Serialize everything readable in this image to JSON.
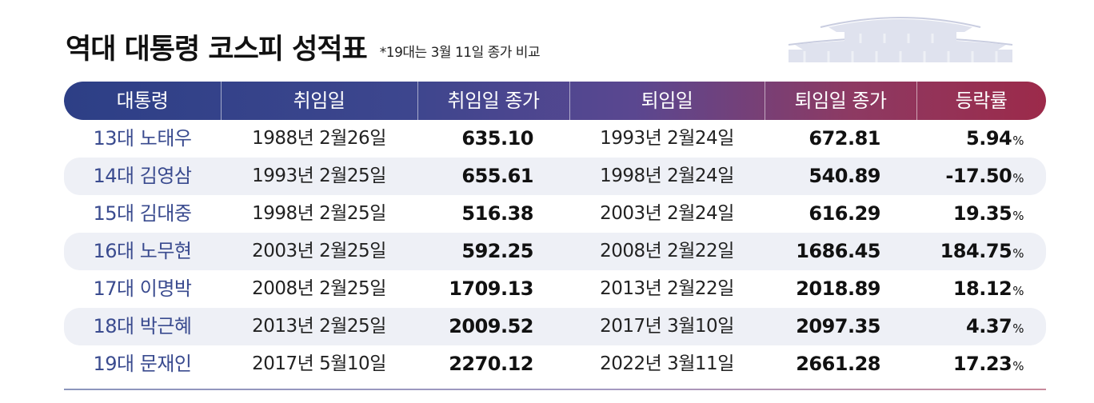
{
  "title": "역대 대통령 코스피 성적표",
  "note": "*19대는 3월 11일 종가 비교",
  "columns": [
    "대통령",
    "취임일",
    "취임일 종가",
    "퇴임일",
    "퇴임일 종가",
    "등락률"
  ],
  "percent_unit": "%",
  "rows": [
    {
      "president": "13대 노태우",
      "inaug_date": "1988년 2월26일",
      "inaug_close": "635.10",
      "leave_date": "1993년 2월24일",
      "leave_close": "672.81",
      "change": "5.94"
    },
    {
      "president": "14대 김영삼",
      "inaug_date": "1993년 2월25일",
      "inaug_close": "655.61",
      "leave_date": "1998년 2월24일",
      "leave_close": "540.89",
      "change": "-17.50"
    },
    {
      "president": "15대 김대중",
      "inaug_date": "1998년 2월25일",
      "inaug_close": "516.38",
      "leave_date": "2003년 2월24일",
      "leave_close": "616.29",
      "change": "19.35"
    },
    {
      "president": "16대 노무현",
      "inaug_date": "2003년 2월25일",
      "inaug_close": "592.25",
      "leave_date": "2008년 2월22일",
      "leave_close": "1686.45",
      "change": "184.75"
    },
    {
      "president": "17대 이명박",
      "inaug_date": "2008년 2월25일",
      "inaug_close": "1709.13",
      "leave_date": "2013년 2월22일",
      "leave_close": "2018.89",
      "change": "18.12"
    },
    {
      "president": "18대 박근혜",
      "inaug_date": "2013년 2월25일",
      "inaug_close": "2009.52",
      "leave_date": "2017년 3월10일",
      "leave_close": "2097.35",
      "change": "4.37"
    },
    {
      "president": "19대 문재인",
      "inaug_date": "2017년 5월10일",
      "inaug_close": "2270.12",
      "leave_date": "2022년 3월11일",
      "leave_close": "2661.28",
      "change": "17.23"
    }
  ]
}
